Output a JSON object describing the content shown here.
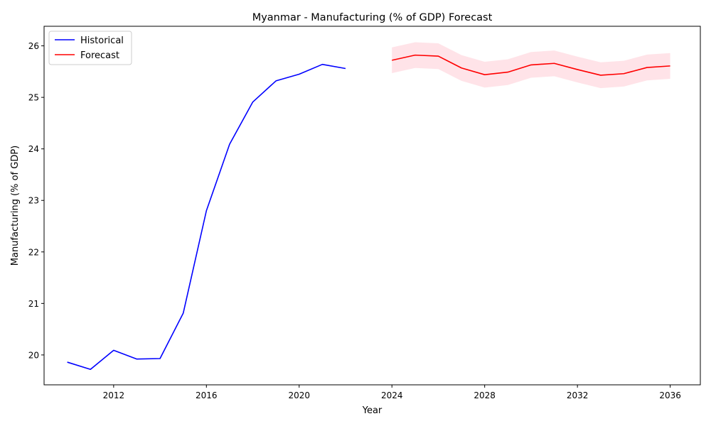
{
  "chart_data": {
    "type": "line",
    "title": "Myanmar - Manufacturing (% of GDP) Forecast",
    "xlabel": "Year",
    "ylabel": "Manufacturing (% of GDP)",
    "xlim": [
      2009,
      2037.3
    ],
    "ylim": [
      19.42,
      26.38
    ],
    "x_ticks": [
      2012,
      2016,
      2020,
      2024,
      2028,
      2032,
      2036
    ],
    "y_ticks": [
      20,
      21,
      22,
      23,
      24,
      25,
      26
    ],
    "legend_position": "top-left",
    "colors": {
      "historical": "#0000ff",
      "forecast": "#ff0000",
      "band": "#ffc0cb"
    },
    "series": [
      {
        "name": "Historical",
        "x": [
          2010,
          2011,
          2012,
          2013,
          2014,
          2015,
          2016,
          2017,
          2018,
          2019,
          2020,
          2021,
          2022
        ],
        "values": [
          19.86,
          19.72,
          20.09,
          19.92,
          19.93,
          20.81,
          22.8,
          24.09,
          24.91,
          25.32,
          25.45,
          25.64,
          25.56
        ]
      },
      {
        "name": "Forecast",
        "x": [
          2024,
          2025,
          2026,
          2027,
          2028,
          2029,
          2030,
          2031,
          2032,
          2033,
          2034,
          2035,
          2036
        ],
        "values": [
          25.72,
          25.82,
          25.8,
          25.57,
          25.44,
          25.49,
          25.63,
          25.66,
          25.54,
          25.43,
          25.46,
          25.58,
          25.61
        ],
        "lower": [
          25.47,
          25.57,
          25.55,
          25.32,
          25.19,
          25.24,
          25.38,
          25.41,
          25.29,
          25.18,
          25.21,
          25.33,
          25.36
        ],
        "upper": [
          25.97,
          26.07,
          26.05,
          25.82,
          25.69,
          25.74,
          25.88,
          25.91,
          25.79,
          25.68,
          25.71,
          25.83,
          25.86
        ]
      }
    ]
  }
}
